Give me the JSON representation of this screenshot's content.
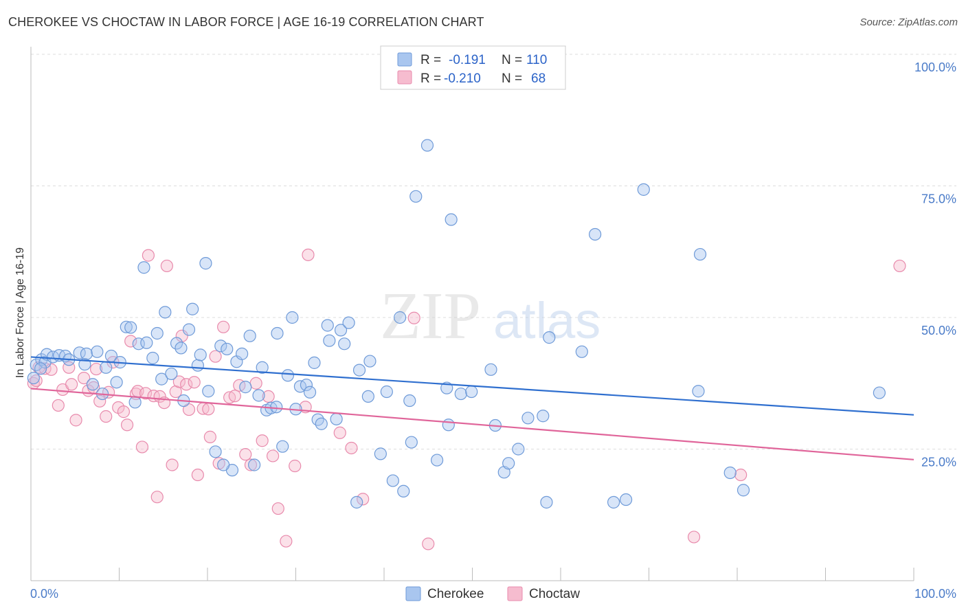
{
  "title": "CHEROKEE VS CHOCTAW IN LABOR FORCE | AGE 16-19 CORRELATION CHART",
  "source": "Source: ZipAtlas.com",
  "watermark": {
    "zip": "ZIP",
    "atlas": "atlas"
  },
  "colors": {
    "cherokee_fill": "#a9c6ef",
    "cherokee_stroke": "#6e9ad8",
    "cherokee_line": "#2f6fcf",
    "choctaw_fill": "#f6bccf",
    "choctaw_stroke": "#e88aac",
    "choctaw_line": "#e0659a",
    "grid": "#dddddd",
    "tick_text": "#4a7bc8"
  },
  "legend": {
    "rows": [
      {
        "r_label": "R =",
        "r_value": "-0.191",
        "n_label": "N =",
        "n_value": "110"
      },
      {
        "r_label": "R =",
        "r_value": "-0.210",
        "n_label": "N =",
        "n_value": "68"
      }
    ]
  },
  "chart_data": {
    "type": "scatter",
    "title": "CHEROKEE VS CHOCTAW IN LABOR FORCE | AGE 16-19 CORRELATION CHART",
    "xlabel": "",
    "ylabel": "In Labor Force | Age 16-19",
    "xlim": [
      0,
      100
    ],
    "ylim": [
      0,
      100
    ],
    "x_tick_labels": [
      "0.0%",
      "100.0%"
    ],
    "y_ticks": [
      {
        "value": 25,
        "label": "25.0%"
      },
      {
        "value": 50,
        "label": "50.0%"
      },
      {
        "value": 75,
        "label": "75.0%"
      },
      {
        "value": 100,
        "label": "100.0%"
      }
    ],
    "legend_entries": [
      "Cherokee",
      "Choctaw"
    ],
    "series": [
      {
        "name": "Cherokee",
        "r": -0.191,
        "n": 110,
        "trend": {
          "x": [
            0,
            100
          ],
          "y": [
            42.5,
            31.5
          ]
        },
        "points": [
          [
            0.3,
            38.5
          ],
          [
            0.6,
            41
          ],
          [
            1.2,
            42
          ],
          [
            1.6,
            41.5
          ],
          [
            1.8,
            43
          ],
          [
            2.5,
            42.5
          ],
          [
            3.2,
            42.8
          ],
          [
            3.9,
            42.7
          ],
          [
            4.3,
            42
          ],
          [
            5.5,
            43.3
          ],
          [
            6.3,
            43.1
          ],
          [
            6.1,
            41.1
          ],
          [
            7.0,
            37.3
          ],
          [
            7.5,
            43.5
          ],
          [
            8.1,
            35.5
          ],
          [
            8.5,
            40.5
          ],
          [
            9.1,
            42.7
          ],
          [
            9.7,
            37.7
          ],
          [
            10.1,
            41.5
          ],
          [
            10.8,
            48.2
          ],
          [
            11.3,
            48.1
          ],
          [
            11.8,
            33.9
          ],
          [
            12.2,
            45
          ],
          [
            12.8,
            59.5
          ],
          [
            13.1,
            45.2
          ],
          [
            13.8,
            42.3
          ],
          [
            14.3,
            47
          ],
          [
            14.8,
            38.3
          ],
          [
            15.2,
            51
          ],
          [
            15.9,
            39.3
          ],
          [
            16.5,
            45.1
          ],
          [
            17.0,
            44.2
          ],
          [
            17.3,
            34.2
          ],
          [
            17.9,
            47.7
          ],
          [
            18.3,
            51.6
          ],
          [
            18.9,
            40.9
          ],
          [
            19.2,
            42.9
          ],
          [
            19.8,
            60.3
          ],
          [
            20.1,
            36
          ],
          [
            20.9,
            24.5
          ],
          [
            21.5,
            44.6
          ],
          [
            22.2,
            44
          ],
          [
            22.8,
            21
          ],
          [
            23.3,
            41.6
          ],
          [
            23.9,
            43.1
          ],
          [
            24.3,
            36.8
          ],
          [
            24.8,
            46.5
          ],
          [
            25.3,
            22
          ],
          [
            25.8,
            35.2
          ],
          [
            26.2,
            40.5
          ],
          [
            26.7,
            32.4
          ],
          [
            27.2,
            32.8
          ],
          [
            27.9,
            47
          ],
          [
            28.5,
            25.5
          ],
          [
            29.1,
            39
          ],
          [
            29.6,
            50
          ],
          [
            30.0,
            32.6
          ],
          [
            30.5,
            36.9
          ],
          [
            31.2,
            37.2
          ],
          [
            31.6,
            35.8
          ],
          [
            32.1,
            41.4
          ],
          [
            32.5,
            30.6
          ],
          [
            32.9,
            29.8
          ],
          [
            33.6,
            48.5
          ],
          [
            33.8,
            45.6
          ],
          [
            34.6,
            30.7
          ],
          [
            35.1,
            47.6
          ],
          [
            35.5,
            45
          ],
          [
            36.0,
            49
          ],
          [
            36.9,
            14.9
          ],
          [
            37.2,
            40
          ],
          [
            38.2,
            35
          ],
          [
            38.4,
            41.7
          ],
          [
            39.6,
            24.1
          ],
          [
            40.3,
            35.9
          ],
          [
            41.0,
            19
          ],
          [
            41.8,
            50
          ],
          [
            42.2,
            17
          ],
          [
            42.9,
            34.2
          ],
          [
            43.1,
            26.3
          ],
          [
            43.6,
            73
          ],
          [
            44.9,
            82.7
          ],
          [
            46.0,
            22.9
          ],
          [
            47.1,
            36.6
          ],
          [
            47.3,
            29.6
          ],
          [
            47.6,
            68.6
          ],
          [
            48.7,
            35.5
          ],
          [
            49.9,
            35.9
          ],
          [
            52.1,
            40.1
          ],
          [
            52.6,
            29.5
          ],
          [
            53.6,
            20.6
          ],
          [
            54.1,
            22.3
          ],
          [
            55.2,
            25
          ],
          [
            56.3,
            30.9
          ],
          [
            58.0,
            31.3
          ],
          [
            58.4,
            14.9
          ],
          [
            58.7,
            46.2
          ],
          [
            62.4,
            43.5
          ],
          [
            63.9,
            65.8
          ],
          [
            66.0,
            14.9
          ],
          [
            67.4,
            15.4
          ],
          [
            69.4,
            74.3
          ],
          [
            75.6,
            36
          ],
          [
            75.8,
            62
          ],
          [
            79.2,
            20.5
          ],
          [
            80.7,
            17.2
          ],
          [
            96.1,
            35.7
          ],
          [
            1.1,
            40.3
          ],
          [
            27.8,
            33
          ],
          [
            21.8,
            22
          ]
        ]
      },
      {
        "name": "Choctaw",
        "r": -0.21,
        "n": 68,
        "trend": {
          "x": [
            0,
            100
          ],
          "y": [
            36.5,
            23
          ]
        },
        "points": [
          [
            0.3,
            37.5
          ],
          [
            0.9,
            40.5
          ],
          [
            1.6,
            40.3
          ],
          [
            2.3,
            40.1
          ],
          [
            3.1,
            33.3
          ],
          [
            3.6,
            36.3
          ],
          [
            4.3,
            40.5
          ],
          [
            4.6,
            37.3
          ],
          [
            5.1,
            30.5
          ],
          [
            6.0,
            38.5
          ],
          [
            6.5,
            36.1
          ],
          [
            7.1,
            36.7
          ],
          [
            7.4,
            40.2
          ],
          [
            7.8,
            34.1
          ],
          [
            8.5,
            31.2
          ],
          [
            8.8,
            35.8
          ],
          [
            9.3,
            41.5
          ],
          [
            9.9,
            32.9
          ],
          [
            10.5,
            32.1
          ],
          [
            10.9,
            29.6
          ],
          [
            11.3,
            45.5
          ],
          [
            11.9,
            35.5
          ],
          [
            12.1,
            36
          ],
          [
            12.6,
            25.4
          ],
          [
            13.0,
            35.6
          ],
          [
            13.3,
            61.8
          ],
          [
            13.9,
            35.1
          ],
          [
            14.3,
            15.9
          ],
          [
            14.6,
            35
          ],
          [
            15.1,
            33.8
          ],
          [
            15.4,
            59.8
          ],
          [
            16.0,
            22
          ],
          [
            16.4,
            35.9
          ],
          [
            16.8,
            37.8
          ],
          [
            17.1,
            46.5
          ],
          [
            17.6,
            37.3
          ],
          [
            17.9,
            32.5
          ],
          [
            18.5,
            37.7
          ],
          [
            18.9,
            20.1
          ],
          [
            19.5,
            32.7
          ],
          [
            20.1,
            32.6
          ],
          [
            20.3,
            27.3
          ],
          [
            20.9,
            42.6
          ],
          [
            21.3,
            22.3
          ],
          [
            21.8,
            48.2
          ],
          [
            22.5,
            34.8
          ],
          [
            23.1,
            35.1
          ],
          [
            23.6,
            37.1
          ],
          [
            24.3,
            24
          ],
          [
            24.9,
            22
          ],
          [
            25.5,
            37.5
          ],
          [
            26.2,
            26.6
          ],
          [
            26.9,
            35
          ],
          [
            27.4,
            23.7
          ],
          [
            28.0,
            13.7
          ],
          [
            28.9,
            7.5
          ],
          [
            29.9,
            21.8
          ],
          [
            31.1,
            33
          ],
          [
            31.4,
            61.9
          ],
          [
            35.0,
            28.1
          ],
          [
            36.3,
            25.2
          ],
          [
            37.6,
            15.5
          ],
          [
            43.4,
            49.9
          ],
          [
            45.0,
            7
          ],
          [
            75.1,
            8.3
          ],
          [
            80.4,
            20.1
          ],
          [
            98.4,
            59.8
          ],
          [
            0.6,
            38
          ]
        ]
      }
    ]
  }
}
